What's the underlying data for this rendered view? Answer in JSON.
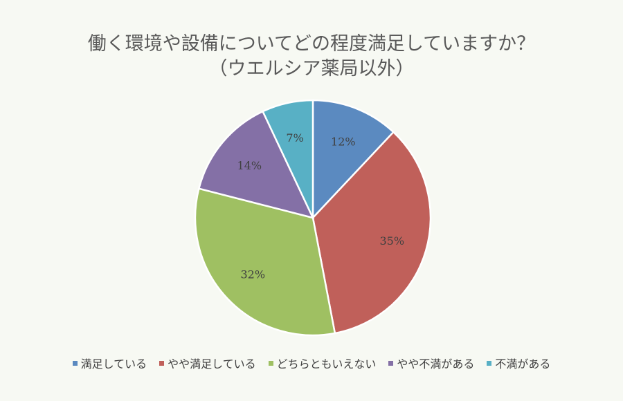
{
  "chart_data": {
    "type": "pie",
    "title_lines": [
      "働く環境や設備についてどの程度満足していますか？",
      "（ウエルシア薬局以外）"
    ],
    "categories": [
      "満足している",
      "やや満足している",
      "どちらともいえない",
      "やや不満がある",
      "不満がある"
    ],
    "values": [
      12,
      35,
      32,
      14,
      7
    ],
    "data_labels": [
      "12%",
      "35%",
      "32%",
      "14%",
      "7%"
    ],
    "colors": [
      "#5b8ac0",
      "#c0605a",
      "#9fc062",
      "#8470a6",
      "#58b0c5"
    ],
    "legend_position": "bottom",
    "start_angle": "12 o'clock, clockwise"
  }
}
